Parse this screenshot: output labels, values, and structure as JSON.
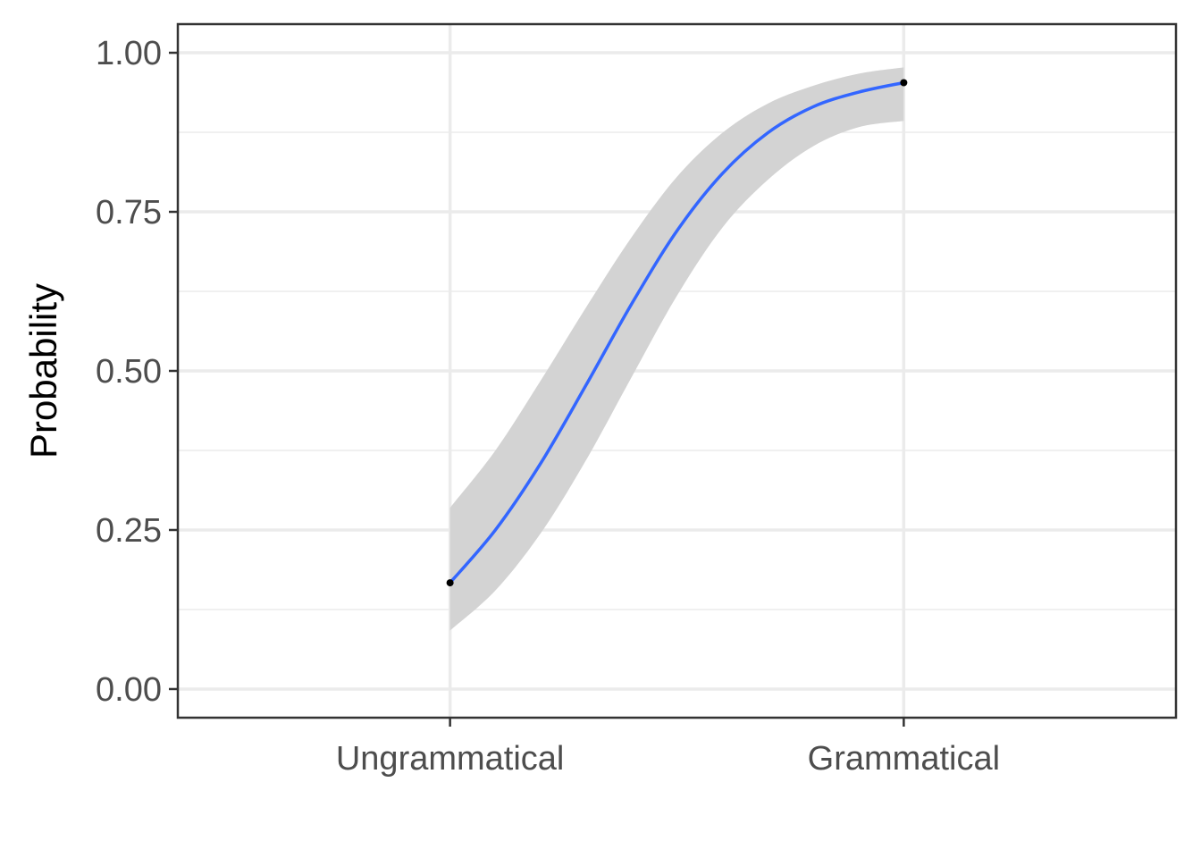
{
  "chart_data": {
    "type": "line",
    "title": "",
    "xlabel": "",
    "ylabel": "Probability",
    "categories": [
      "Ungrammatical",
      "Grammatical"
    ],
    "y_ticks": [
      "0.00",
      "0.25",
      "0.50",
      "0.75",
      "1.00"
    ],
    "ylim": [
      -0.045,
      1.045
    ],
    "xlim": [
      0.4,
      2.6
    ],
    "grid": true,
    "legend": "none",
    "points": [
      {
        "category": "Ungrammatical",
        "x": 1,
        "y": 0.167
      },
      {
        "category": "Grammatical",
        "x": 2,
        "y": 0.953
      }
    ],
    "series": [
      {
        "x": [
          1.0,
          1.1,
          1.2,
          1.3,
          1.4,
          1.5,
          1.6,
          1.7,
          1.8,
          1.9,
          2.0
        ],
        "y": [
          0.167,
          0.25,
          0.355,
          0.478,
          0.605,
          0.72,
          0.81,
          0.874,
          0.915,
          0.938,
          0.953
        ],
        "ci_lower": [
          0.092,
          0.155,
          0.245,
          0.36,
          0.49,
          0.618,
          0.725,
          0.8,
          0.853,
          0.883,
          0.893
        ],
        "ci_upper": [
          0.285,
          0.375,
          0.485,
          0.6,
          0.71,
          0.805,
          0.874,
          0.92,
          0.948,
          0.967,
          0.977
        ]
      }
    ],
    "colors": {
      "line": "#3366FF",
      "ribbon": "#D3D3D3",
      "point": "#000000",
      "grid": "#EBEBEB",
      "panel_border": "#333333"
    }
  }
}
